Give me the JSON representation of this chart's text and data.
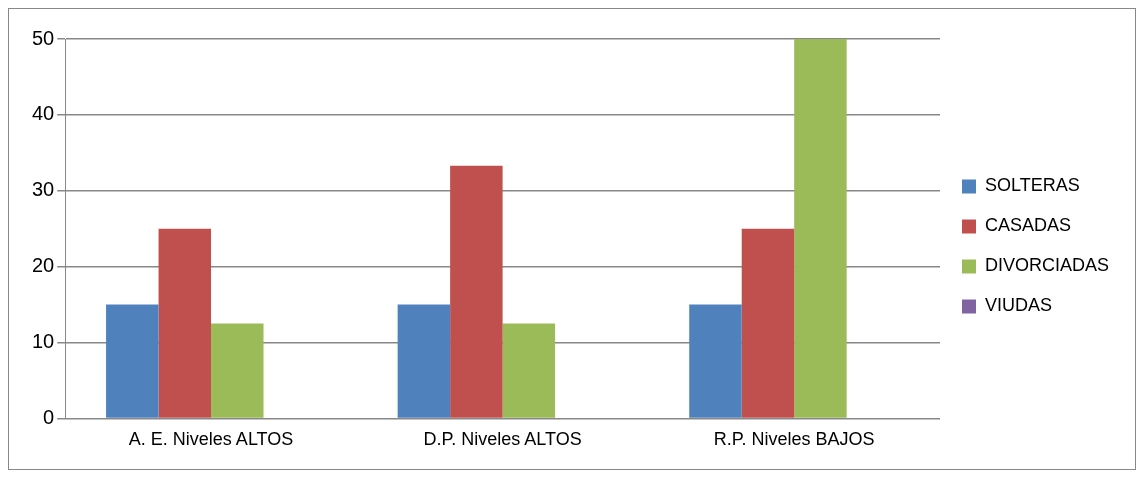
{
  "chart_data": {
    "type": "bar",
    "categories": [
      "A. E. Niveles ALTOS",
      "D.P. Niveles ALTOS",
      "R.P. Niveles BAJOS"
    ],
    "series": [
      {
        "name": "SOLTERAS",
        "color": "#4f81bd",
        "values": [
          15,
          15,
          15
        ]
      },
      {
        "name": "CASADAS",
        "color": "#c0504d",
        "values": [
          25,
          33.3,
          25
        ]
      },
      {
        "name": "DIVORCIADAS",
        "color": "#9bbb59",
        "values": [
          12.5,
          12.5,
          50
        ]
      },
      {
        "name": "VIUDAS",
        "color": "#8064a2",
        "values": [
          0,
          0,
          0
        ]
      }
    ],
    "ylim": [
      0,
      50
    ],
    "yticks": [
      0,
      10,
      20,
      30,
      40,
      50
    ],
    "grid": "y",
    "legend": "right"
  }
}
